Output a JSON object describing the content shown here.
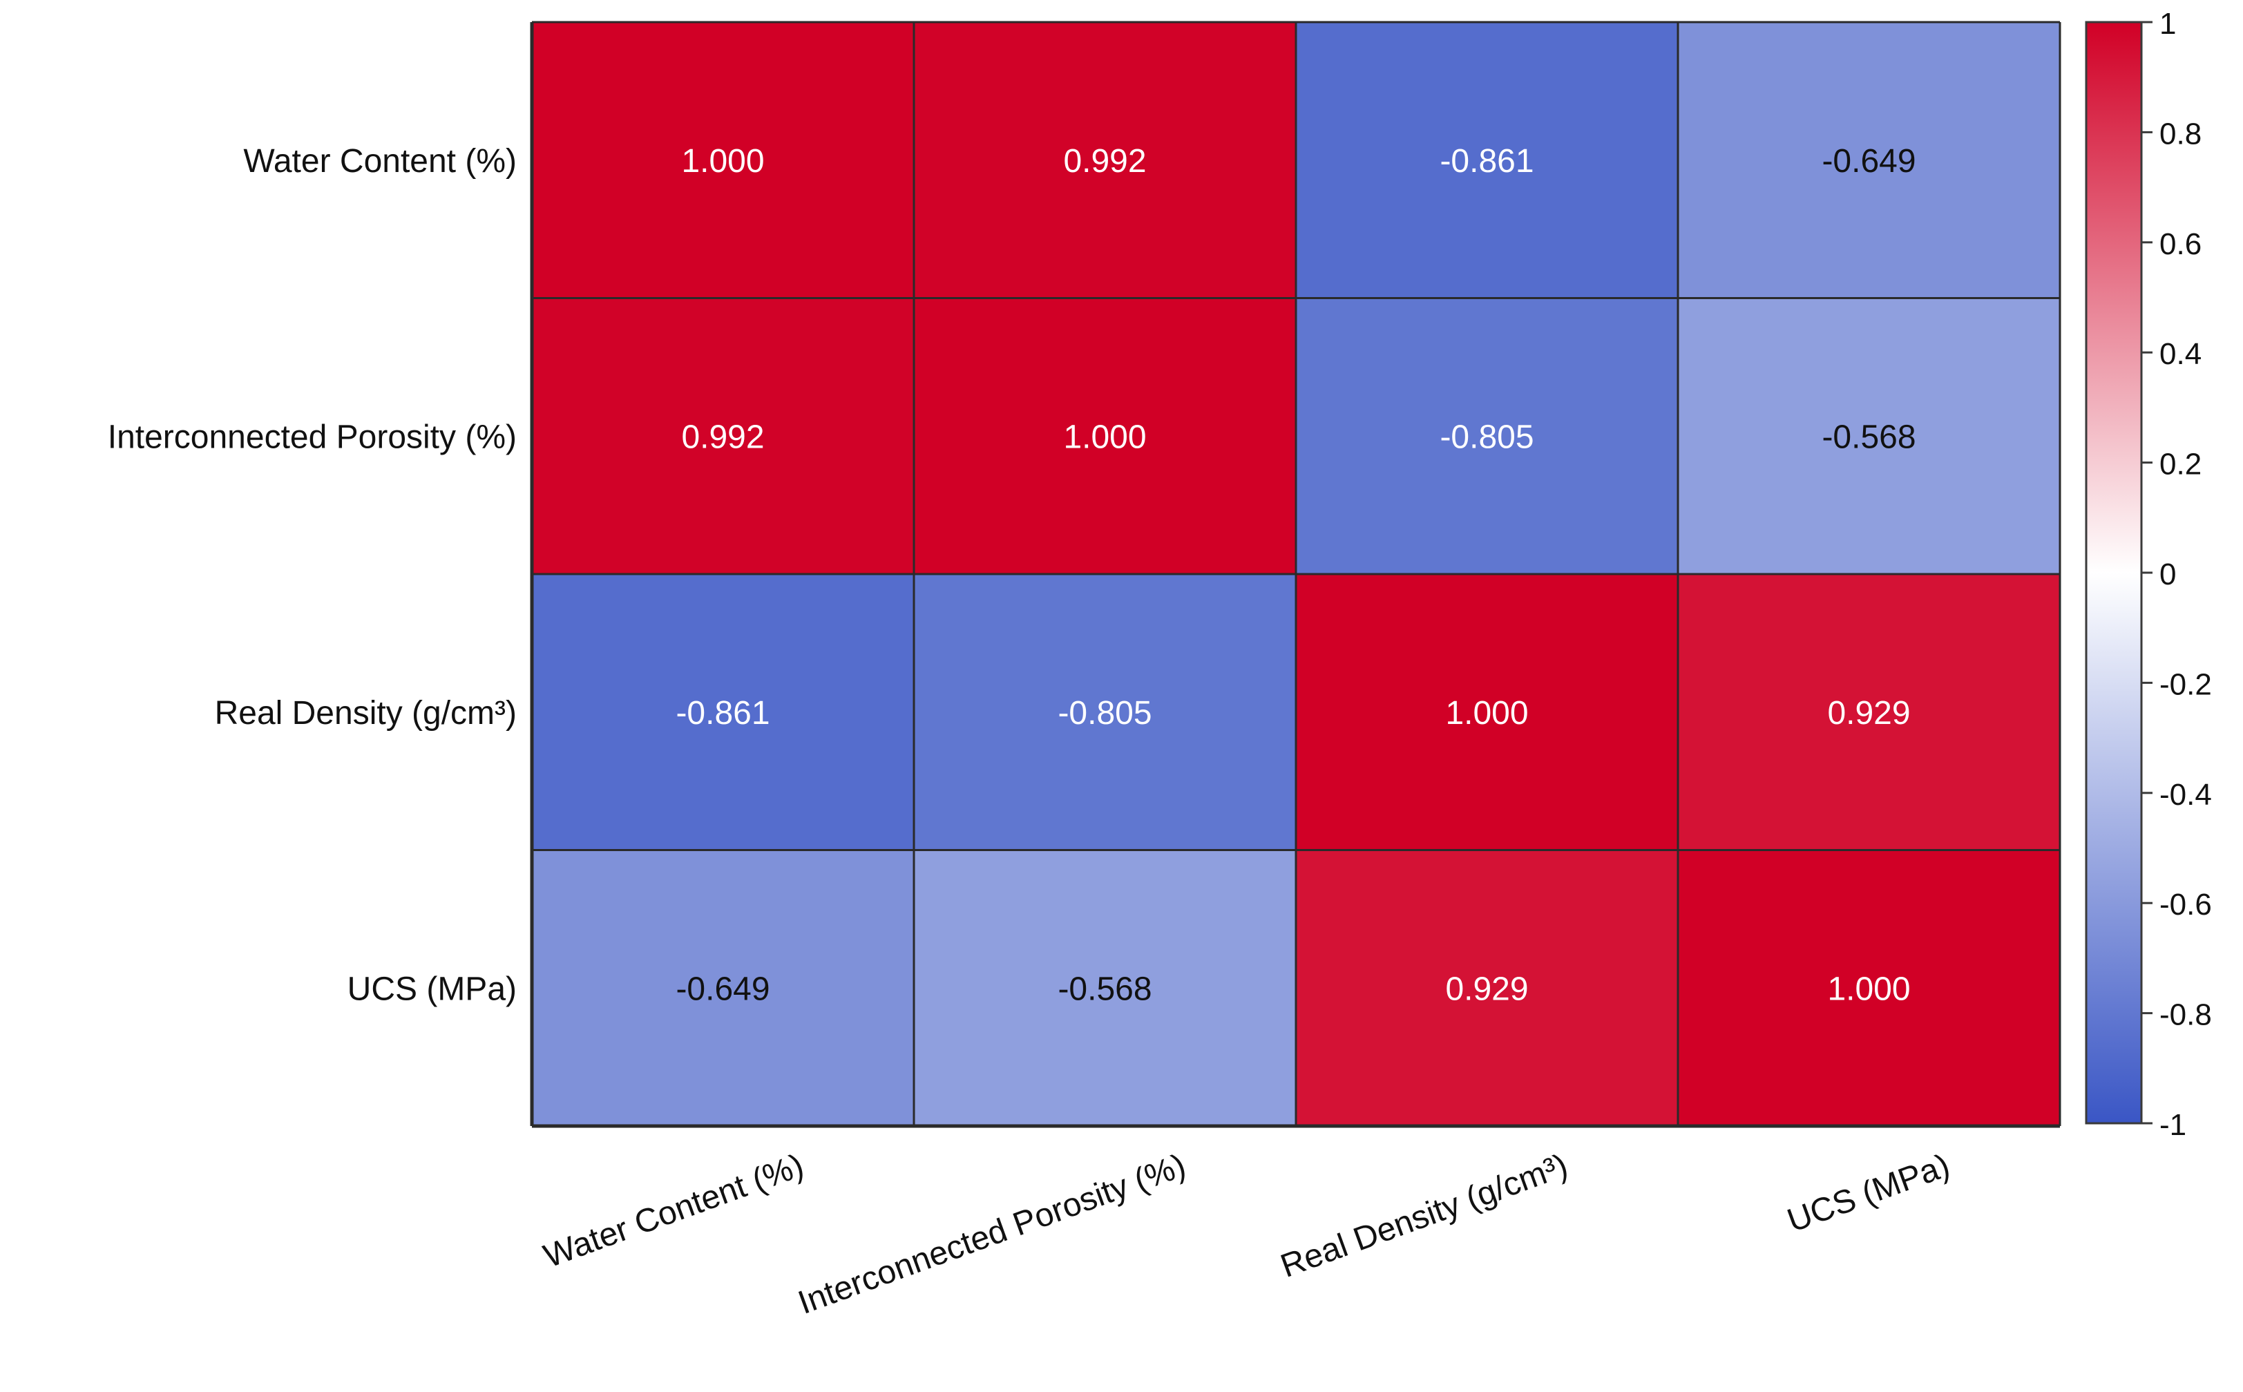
{
  "chart_data": {
    "type": "heatmap",
    "title": "",
    "rows": [
      "Water Content (%)",
      "Interconnected Porosity (%)",
      "Real Density (g/cm³)",
      "UCS (MPa)"
    ],
    "columns": [
      "Water Content (%)",
      "Interconnected Porosity (%)",
      "Real Density (g/cm³)",
      "UCS (MPa)"
    ],
    "values": [
      [
        1.0,
        0.992,
        -0.861,
        -0.649
      ],
      [
        0.992,
        1.0,
        -0.805,
        -0.568
      ],
      [
        -0.861,
        -0.805,
        1.0,
        0.929
      ],
      [
        -0.649,
        -0.568,
        0.929,
        1.0
      ]
    ],
    "value_labels": [
      [
        "1.000",
        "0.992",
        "-0.861",
        "-0.649"
      ],
      [
        "0.992",
        "1.000",
        "-0.805",
        "-0.568"
      ],
      [
        "-0.861",
        "-0.805",
        "1.000",
        "0.929"
      ],
      [
        "-0.649",
        "-0.568",
        "0.929",
        "1.000"
      ]
    ],
    "colorbar": {
      "range": [
        -1,
        1
      ],
      "ticks": [
        -1,
        -0.8,
        -0.6,
        -0.4,
        -0.2,
        0,
        0.2,
        0.4,
        0.6,
        0.8,
        1
      ],
      "tick_labels": [
        "-1",
        "-0.8",
        "-0.6",
        "-0.4",
        "-0.2",
        "0",
        "0.2",
        "0.4",
        "0.6",
        "0.8",
        "1"
      ],
      "colors": {
        "low": "#3a56c5",
        "mid": "#ffffff",
        "high": "#d10026"
      }
    },
    "label_colors": {
      "light": "#ffffff",
      "dark": "#111111"
    }
  }
}
